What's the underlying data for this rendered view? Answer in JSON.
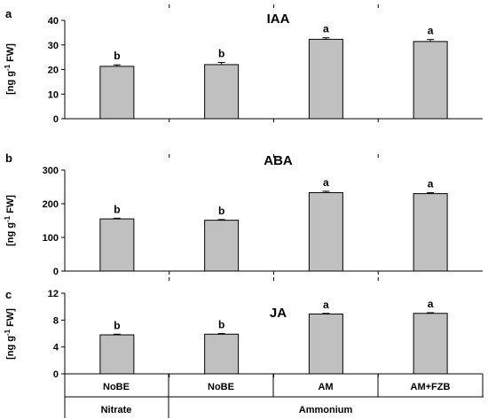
{
  "figure": {
    "ylabel_html_parts": [
      "[ng g",
      "-1",
      " FW]"
    ]
  },
  "chart_data": [
    {
      "type": "bar",
      "panel": "a",
      "title": "IAA",
      "ylabel": "[ng g-1 FW]",
      "ylim": [
        0,
        40
      ],
      "yticks": [
        "0",
        "10",
        "20",
        "30",
        "40"
      ],
      "categories": [
        "NoBE",
        "NoBE",
        "AM",
        "AM+FZB"
      ],
      "values": [
        21.3,
        22.0,
        32.3,
        31.4
      ],
      "errors": [
        0.6,
        0.9,
        0.6,
        0.8
      ],
      "letters": [
        "b",
        "b",
        "a",
        "a"
      ],
      "bar_color": "#c0c0c0"
    },
    {
      "type": "bar",
      "panel": "b",
      "title": "ABA",
      "ylabel": "[ng g-1 FW]",
      "ylim": [
        0,
        300
      ],
      "yticks": [
        "0",
        "100",
        "200",
        "300"
      ],
      "categories": [
        "NoBE",
        "NoBE",
        "AM",
        "AM+FZB"
      ],
      "values": [
        155,
        151,
        233,
        230
      ],
      "errors": [
        2,
        2,
        4,
        3
      ],
      "letters": [
        "b",
        "b",
        "a",
        "a"
      ],
      "bar_color": "#c0c0c0"
    },
    {
      "type": "bar",
      "panel": "c",
      "title": "JA",
      "ylabel": "[ng g-1 FW]",
      "ylim": [
        0,
        12
      ],
      "yticks": [
        "0",
        "4",
        "8",
        "12"
      ],
      "categories": [
        "NoBE",
        "NoBE",
        "AM",
        "AM+FZB"
      ],
      "values": [
        5.8,
        5.9,
        8.9,
        9.0
      ],
      "errors": [
        0.1,
        0.1,
        0.1,
        0.1
      ],
      "letters": [
        "b",
        "b",
        "a",
        "a"
      ],
      "bar_color": "#c0c0c0"
    }
  ],
  "table": {
    "row1": [
      "NoBE",
      "NoBE",
      "AM",
      "AM+FZB"
    ],
    "row2": [
      "Nitrate",
      "Ammonium"
    ]
  }
}
